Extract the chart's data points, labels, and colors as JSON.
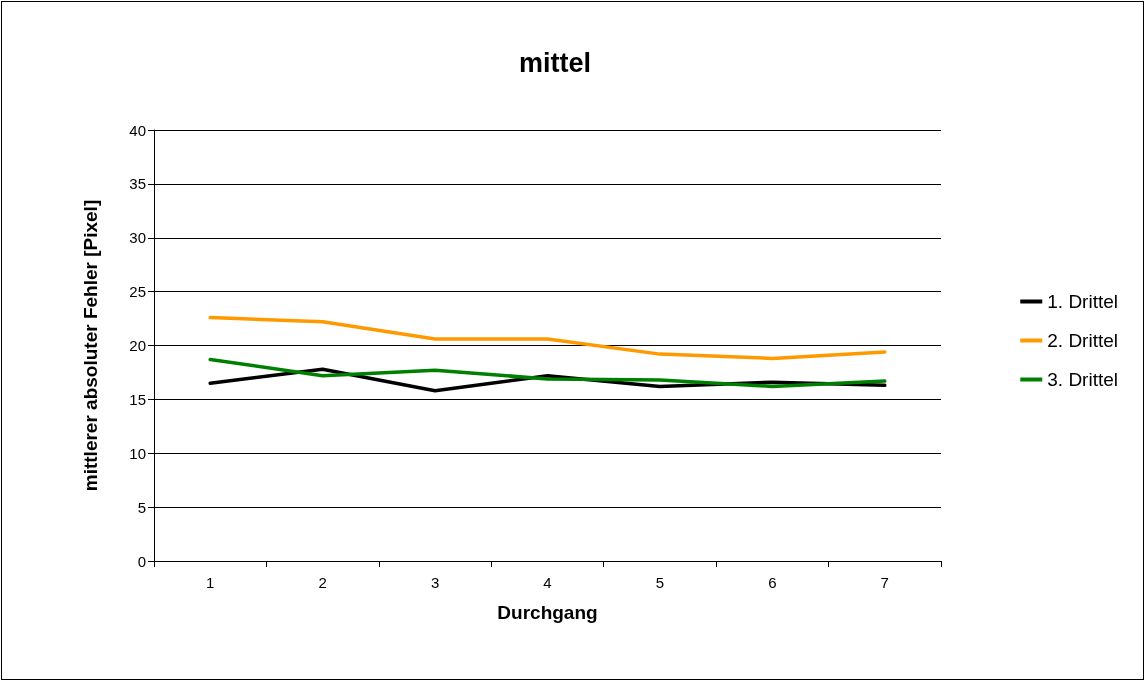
{
  "chart_data": {
    "type": "line",
    "title": "mittel",
    "xlabel": "Durchgang",
    "ylabel": "mittlerer absoluter Fehler [Pixel]",
    "categories": [
      "1",
      "2",
      "3",
      "4",
      "5",
      "6",
      "7"
    ],
    "series": [
      {
        "name": "1. Drittel",
        "color": "#000000",
        "values": [
          16.5,
          17.8,
          15.8,
          17.2,
          16.2,
          16.6,
          16.3
        ]
      },
      {
        "name": "2. Drittel",
        "color": "#ff9900",
        "values": [
          22.6,
          22.2,
          20.6,
          20.6,
          19.2,
          18.8,
          19.4
        ]
      },
      {
        "name": "3. Drittel",
        "color": "#008000",
        "values": [
          18.7,
          17.2,
          17.7,
          16.9,
          16.8,
          16.2,
          16.7
        ]
      }
    ],
    "ylim": [
      0,
      40
    ],
    "yticks": [
      0,
      5,
      10,
      15,
      20,
      25,
      30,
      35,
      40
    ],
    "grid": "y",
    "legend": "right",
    "marker": "none",
    "line_style": "solid"
  }
}
